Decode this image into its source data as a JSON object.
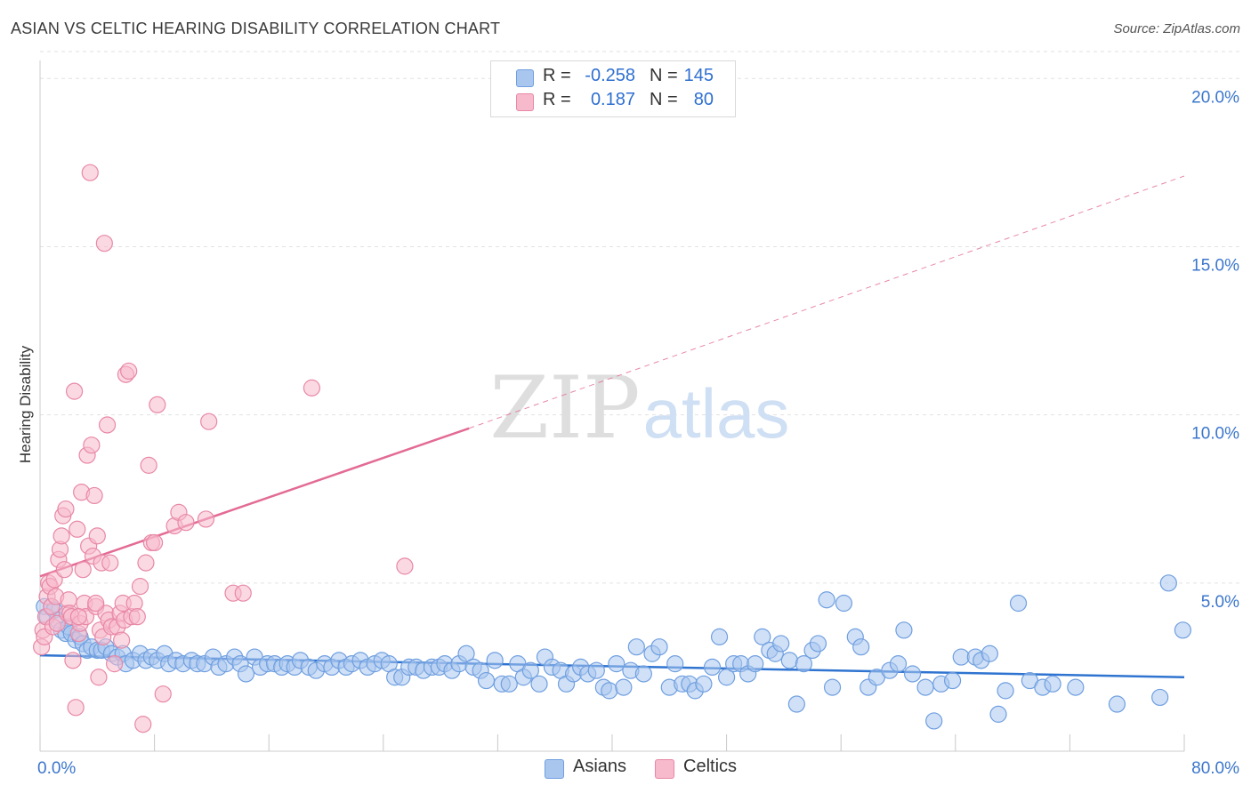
{
  "title": "ASIAN VS CELTIC HEARING DISABILITY CORRELATION CHART",
  "source": "Source: ZipAtlas.com",
  "watermark": {
    "zip": "ZIP",
    "atlas": "atlas"
  },
  "legend_stats": [
    {
      "r_label": "R =",
      "r_value": "-0.258",
      "n_label": "N =",
      "n_value": "145",
      "color": "#a9c6ef",
      "border": "#6f9fe0"
    },
    {
      "r_label": "R =",
      "r_value": "0.187",
      "n_label": "N =",
      "n_value": "80",
      "color": "#f7b9cc",
      "border": "#e888a6"
    }
  ],
  "chart_data": {
    "type": "scatter",
    "title": "ASIAN VS CELTIC HEARING DISABILITY CORRELATION CHART",
    "xlabel": "",
    "ylabel": "Hearing Disability",
    "xlim": [
      0,
      80
    ],
    "ylim": [
      0,
      20.8
    ],
    "x_tick_labels": [
      {
        "value": 0,
        "label": "0.0%"
      },
      {
        "value": 80,
        "label": "80.0%"
      }
    ],
    "y_ticks": [
      {
        "value": 5,
        "label": "5.0%"
      },
      {
        "value": 10,
        "label": "10.0%"
      },
      {
        "value": 15,
        "label": "15.0%"
      },
      {
        "value": 20,
        "label": "20.0%"
      }
    ],
    "x_minor_ticks": [
      0,
      8,
      16,
      24,
      32,
      40,
      48,
      56,
      64,
      72,
      80
    ],
    "grid": "horizontal-dashed",
    "legend": "top-center",
    "series": [
      {
        "name": "Asians",
        "color": "#6f9fe0",
        "fill": "#a9c6ef",
        "trend": {
          "x0": 0,
          "y0": 2.85,
          "x1": 80,
          "y1": 2.2,
          "color": "#2f74d0"
        },
        "points": [
          [
            0.3,
            4.3
          ],
          [
            0.5,
            4.0
          ],
          [
            0.8,
            4.3
          ],
          [
            1.0,
            4.2
          ],
          [
            1.2,
            3.9
          ],
          [
            1.5,
            3.6
          ],
          [
            1.8,
            3.5
          ],
          [
            2.0,
            3.7
          ],
          [
            2.2,
            3.5
          ],
          [
            2.5,
            3.3
          ],
          [
            2.8,
            3.4
          ],
          [
            3.0,
            3.2
          ],
          [
            3.3,
            3.0
          ],
          [
            3.6,
            3.1
          ],
          [
            4.0,
            3.0
          ],
          [
            4.3,
            3.0
          ],
          [
            4.6,
            3.1
          ],
          [
            5.0,
            2.9
          ],
          [
            5.4,
            2.8
          ],
          [
            5.8,
            2.9
          ],
          [
            6.0,
            2.6
          ],
          [
            6.5,
            2.7
          ],
          [
            7.0,
            2.9
          ],
          [
            7.4,
            2.7
          ],
          [
            7.8,
            2.8
          ],
          [
            8.2,
            2.7
          ],
          [
            8.7,
            2.9
          ],
          [
            9.0,
            2.6
          ],
          [
            9.5,
            2.7
          ],
          [
            10.0,
            2.6
          ],
          [
            10.6,
            2.7
          ],
          [
            11.0,
            2.6
          ],
          [
            11.5,
            2.6
          ],
          [
            12.1,
            2.8
          ],
          [
            12.5,
            2.5
          ],
          [
            13.0,
            2.6
          ],
          [
            13.6,
            2.8
          ],
          [
            14.0,
            2.6
          ],
          [
            14.4,
            2.3
          ],
          [
            15.0,
            2.8
          ],
          [
            15.4,
            2.5
          ],
          [
            15.9,
            2.6
          ],
          [
            16.4,
            2.6
          ],
          [
            16.9,
            2.5
          ],
          [
            17.3,
            2.6
          ],
          [
            17.8,
            2.5
          ],
          [
            18.2,
            2.7
          ],
          [
            18.8,
            2.5
          ],
          [
            19.3,
            2.4
          ],
          [
            19.9,
            2.6
          ],
          [
            20.4,
            2.5
          ],
          [
            20.9,
            2.7
          ],
          [
            21.4,
            2.5
          ],
          [
            21.8,
            2.6
          ],
          [
            22.4,
            2.7
          ],
          [
            22.9,
            2.5
          ],
          [
            23.4,
            2.6
          ],
          [
            23.9,
            2.7
          ],
          [
            24.4,
            2.6
          ],
          [
            24.8,
            2.2
          ],
          [
            25.3,
            2.2
          ],
          [
            25.8,
            2.5
          ],
          [
            26.3,
            2.5
          ],
          [
            26.8,
            2.4
          ],
          [
            27.4,
            2.5
          ],
          [
            27.9,
            2.5
          ],
          [
            28.3,
            2.6
          ],
          [
            28.8,
            2.4
          ],
          [
            29.3,
            2.6
          ],
          [
            29.8,
            2.9
          ],
          [
            30.3,
            2.5
          ],
          [
            30.8,
            2.4
          ],
          [
            31.2,
            2.1
          ],
          [
            31.8,
            2.7
          ],
          [
            32.3,
            2.0
          ],
          [
            32.8,
            2.0
          ],
          [
            33.4,
            2.6
          ],
          [
            33.8,
            2.2
          ],
          [
            34.3,
            2.4
          ],
          [
            34.9,
            2.0
          ],
          [
            35.3,
            2.8
          ],
          [
            35.8,
            2.5
          ],
          [
            36.4,
            2.4
          ],
          [
            36.8,
            2.0
          ],
          [
            37.3,
            2.3
          ],
          [
            37.8,
            2.5
          ],
          [
            38.3,
            2.3
          ],
          [
            38.9,
            2.4
          ],
          [
            39.4,
            1.9
          ],
          [
            39.8,
            1.8
          ],
          [
            40.3,
            2.6
          ],
          [
            40.8,
            1.9
          ],
          [
            41.3,
            2.4
          ],
          [
            41.7,
            3.1
          ],
          [
            42.2,
            2.3
          ],
          [
            42.8,
            2.9
          ],
          [
            43.3,
            3.1
          ],
          [
            44.0,
            1.9
          ],
          [
            44.4,
            2.6
          ],
          [
            44.9,
            2.0
          ],
          [
            45.4,
            2.0
          ],
          [
            45.8,
            1.8
          ],
          [
            46.4,
            2.0
          ],
          [
            47.0,
            2.5
          ],
          [
            47.5,
            3.4
          ],
          [
            48.0,
            2.2
          ],
          [
            48.5,
            2.6
          ],
          [
            49.0,
            2.6
          ],
          [
            49.5,
            2.3
          ],
          [
            50.0,
            2.6
          ],
          [
            50.5,
            3.4
          ],
          [
            51.0,
            3.0
          ],
          [
            51.4,
            2.9
          ],
          [
            51.8,
            3.2
          ],
          [
            52.4,
            2.7
          ],
          [
            52.9,
            1.4
          ],
          [
            53.4,
            2.6
          ],
          [
            54.0,
            3.0
          ],
          [
            54.4,
            3.2
          ],
          [
            55.0,
            4.5
          ],
          [
            55.4,
            1.9
          ],
          [
            56.2,
            4.4
          ],
          [
            57.0,
            3.4
          ],
          [
            57.4,
            3.1
          ],
          [
            57.9,
            1.9
          ],
          [
            58.5,
            2.2
          ],
          [
            59.4,
            2.4
          ],
          [
            60.0,
            2.6
          ],
          [
            60.4,
            3.6
          ],
          [
            61.0,
            2.3
          ],
          [
            61.9,
            1.9
          ],
          [
            62.5,
            0.9
          ],
          [
            63.0,
            2.0
          ],
          [
            63.8,
            2.1
          ],
          [
            64.4,
            2.8
          ],
          [
            65.4,
            2.8
          ],
          [
            65.8,
            2.7
          ],
          [
            66.4,
            2.9
          ],
          [
            67.0,
            1.1
          ],
          [
            67.5,
            1.8
          ],
          [
            68.4,
            4.4
          ],
          [
            69.2,
            2.1
          ],
          [
            70.1,
            1.9
          ],
          [
            70.8,
            2.0
          ],
          [
            72.4,
            1.9
          ],
          [
            75.3,
            1.4
          ],
          [
            78.3,
            1.6
          ],
          [
            78.9,
            5.0
          ],
          [
            79.9,
            3.6
          ]
        ]
      },
      {
        "name": "Celtics",
        "color": "#e888a6",
        "fill": "#f7b9cc",
        "trend": {
          "x0": 0,
          "y0": 5.2,
          "x1": 30.0,
          "y1": 9.6,
          "x2": 80,
          "y2": 17.1,
          "color": "#e36b95"
        },
        "points": [
          [
            0.1,
            3.1
          ],
          [
            0.2,
            3.6
          ],
          [
            0.3,
            3.4
          ],
          [
            0.4,
            4.0
          ],
          [
            0.5,
            4.6
          ],
          [
            0.6,
            5.0
          ],
          [
            0.7,
            4.9
          ],
          [
            0.8,
            4.3
          ],
          [
            0.9,
            3.7
          ],
          [
            1.0,
            5.1
          ],
          [
            1.1,
            4.6
          ],
          [
            1.2,
            3.8
          ],
          [
            1.3,
            5.7
          ],
          [
            1.4,
            6.0
          ],
          [
            1.5,
            6.4
          ],
          [
            1.6,
            7.0
          ],
          [
            1.7,
            5.4
          ],
          [
            1.8,
            7.2
          ],
          [
            1.9,
            4.1
          ],
          [
            2.0,
            4.5
          ],
          [
            2.1,
            4.1
          ],
          [
            2.2,
            4.0
          ],
          [
            2.3,
            2.7
          ],
          [
            2.4,
            10.7
          ],
          [
            2.5,
            1.3
          ],
          [
            2.6,
            6.6
          ],
          [
            2.7,
            3.5
          ],
          [
            2.8,
            3.8
          ],
          [
            2.9,
            7.7
          ],
          [
            3.0,
            5.4
          ],
          [
            3.1,
            4.4
          ],
          [
            3.2,
            4.0
          ],
          [
            3.3,
            8.8
          ],
          [
            3.4,
            6.1
          ],
          [
            3.5,
            17.2
          ],
          [
            3.6,
            9.1
          ],
          [
            3.7,
            5.8
          ],
          [
            3.8,
            7.6
          ],
          [
            3.9,
            4.3
          ],
          [
            4.0,
            6.4
          ],
          [
            4.1,
            2.2
          ],
          [
            4.2,
            3.6
          ],
          [
            4.3,
            5.6
          ],
          [
            4.4,
            3.4
          ],
          [
            4.5,
            15.1
          ],
          [
            4.6,
            4.1
          ],
          [
            4.7,
            9.7
          ],
          [
            4.8,
            3.9
          ],
          [
            4.9,
            5.6
          ],
          [
            5.0,
            3.7
          ],
          [
            5.2,
            2.6
          ],
          [
            5.4,
            3.7
          ],
          [
            5.6,
            4.1
          ],
          [
            5.7,
            3.3
          ],
          [
            5.8,
            4.4
          ],
          [
            5.9,
            3.9
          ],
          [
            6.0,
            11.2
          ],
          [
            6.2,
            11.3
          ],
          [
            6.4,
            4.0
          ],
          [
            6.6,
            4.4
          ],
          [
            6.8,
            4.0
          ],
          [
            7.0,
            4.9
          ],
          [
            7.2,
            0.8
          ],
          [
            7.4,
            5.6
          ],
          [
            7.6,
            8.5
          ],
          [
            7.8,
            6.2
          ],
          [
            8.0,
            6.2
          ],
          [
            8.2,
            10.3
          ],
          [
            8.6,
            1.7
          ],
          [
            9.4,
            6.7
          ],
          [
            9.7,
            7.1
          ],
          [
            10.2,
            6.8
          ],
          [
            11.8,
            9.8
          ],
          [
            11.6,
            6.9
          ],
          [
            13.5,
            4.7
          ],
          [
            14.2,
            4.7
          ],
          [
            19.0,
            10.8
          ],
          [
            25.5,
            5.5
          ],
          [
            3.9,
            4.4
          ],
          [
            2.7,
            4.0
          ]
        ]
      }
    ]
  }
}
